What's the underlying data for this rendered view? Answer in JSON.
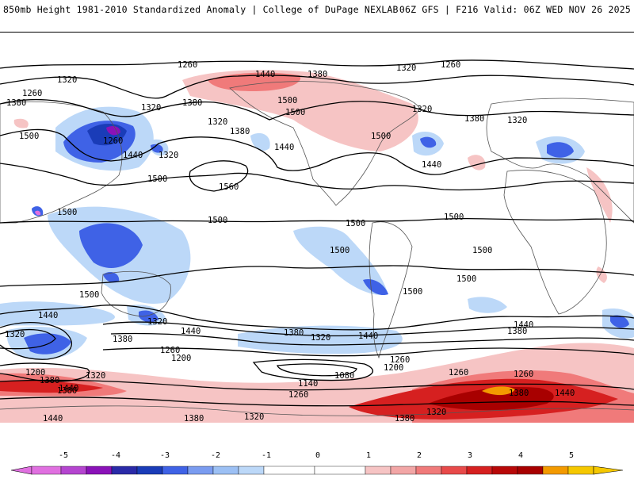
{
  "header": {
    "left": "850mb Height 1981-2010 Standardized Anomaly | College of DuPage NEXLAB",
    "right": "06Z GFS | F216 Valid: 06Z WED NOV 26 2025"
  },
  "colors": {
    "neg5": "#e070e0",
    "neg4": "#8a12b8",
    "neg3": "#1a3cb8",
    "neg2": "#3f62e6",
    "neg1": "#bcd8f8",
    "zero": "#ffffff",
    "pos1": "#f6c4c4",
    "pos2": "#f07a7a",
    "pos3": "#d62020",
    "pos4": "#a80000",
    "pos5": "#f39a00",
    "pos6": "#f5c800"
  },
  "contour_labels": [
    "1260",
    "1320",
    "1440",
    "1380",
    "1260",
    "1320",
    "1500",
    "1380",
    "1320",
    "1380",
    "1320",
    "1500",
    "1260",
    "1320",
    "1440",
    "1380",
    "1260",
    "1320",
    "1500",
    "1380",
    "1440",
    "1500",
    "1560",
    "1500",
    "1500",
    "1500",
    "1500",
    "1500",
    "1500",
    "1500",
    "1500",
    "1500",
    "1500",
    "1440",
    "1320",
    "1380",
    "1320",
    "1440",
    "1320",
    "1380",
    "1260",
    "1200",
    "1200",
    "1380",
    "1140",
    "1080",
    "1260",
    "1200",
    "1320",
    "1260",
    "1380",
    "1440",
    "1260",
    "1320",
    "1380",
    "1380",
    "1320",
    "1380",
    "1440",
    "1440",
    "1380",
    "1440",
    "1440",
    "1320",
    "1260",
    "1440"
  ],
  "colorbar": {
    "ticks": [
      "-5",
      "-4",
      "-3",
      "-2",
      "-1",
      "0",
      "1",
      "2",
      "3",
      "4",
      "5"
    ]
  }
}
